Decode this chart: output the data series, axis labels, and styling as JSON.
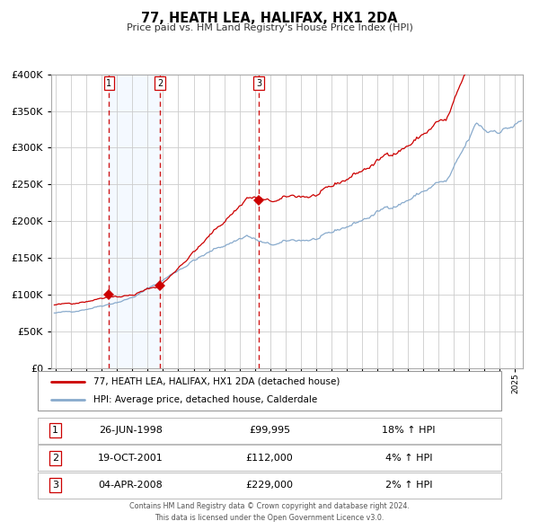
{
  "title": "77, HEATH LEA, HALIFAX, HX1 2DA",
  "subtitle": "Price paid vs. HM Land Registry's House Price Index (HPI)",
  "legend_line1": "77, HEATH LEA, HALIFAX, HX1 2DA (detached house)",
  "legend_line2": "HPI: Average price, detached house, Calderdale",
  "footer1": "Contains HM Land Registry data © Crown copyright and database right 2024.",
  "footer2": "This data is licensed under the Open Government Licence v3.0.",
  "transactions": [
    {
      "num": 1,
      "date": "26-JUN-1998",
      "price": 99995,
      "price_str": "£99,995",
      "pct": "18%",
      "dir": "↑"
    },
    {
      "num": 2,
      "date": "19-OCT-2001",
      "price": 112000,
      "price_str": "£112,000",
      "pct": "4%",
      "dir": "↑"
    },
    {
      "num": 3,
      "date": "04-APR-2008",
      "price": 229000,
      "price_str": "£229,000",
      "pct": "2%",
      "dir": "↑"
    }
  ],
  "transaction_dates_decimal": [
    1998.481,
    2001.799,
    2008.257
  ],
  "sale_prices": [
    99995,
    112000,
    229000
  ],
  "ylim": [
    0,
    400000
  ],
  "yticks": [
    0,
    50000,
    100000,
    150000,
    200000,
    250000,
    300000,
    350000,
    400000
  ],
  "xlim_start": 1994.7,
  "xlim_end": 2025.5,
  "red_color": "#cc0000",
  "blue_color": "#88aacc",
  "bg_shade_color": "#ddeeff",
  "grid_color": "#cccccc",
  "shade_between": [
    1998.481,
    2001.799
  ]
}
